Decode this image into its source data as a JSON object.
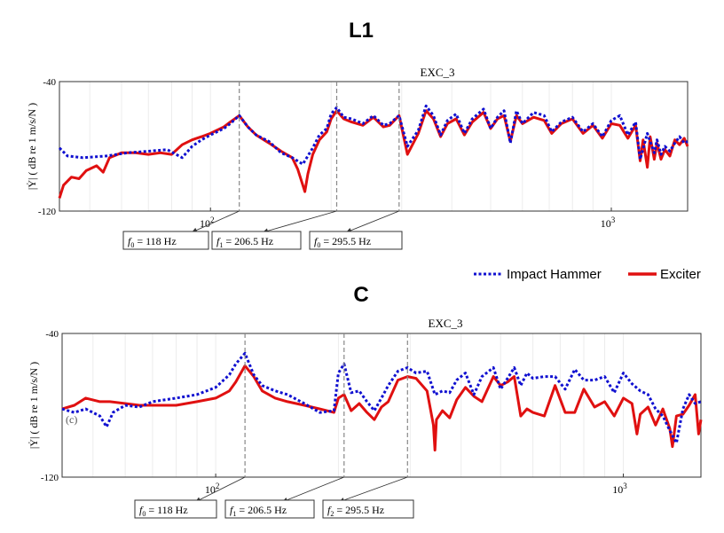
{
  "legend": {
    "placement": "middle-right",
    "entries": [
      {
        "name": "Impact Hammer",
        "color": "#1010d0",
        "style": "dotted"
      },
      {
        "name": "Exciter",
        "color": "#e01010",
        "style": "solid"
      }
    ]
  },
  "chart_data": [
    {
      "type": "line",
      "label": "L1",
      "title": "EXC_3",
      "ylabel": "|Ẏ| ( dB re 1 m/s/N )",
      "xscale": "log",
      "xlim": [
        42,
        1550
      ],
      "ylim": [
        -120,
        -40
      ],
      "ytick_labels": [
        "-40",
        "-120"
      ],
      "xticks": [
        {
          "value": 100,
          "base": "10",
          "exp": "2"
        },
        {
          "value": 1000,
          "base": "10",
          "exp": "3"
        }
      ],
      "grid": "vertical-light",
      "series": [
        {
          "name": "Impact Hammer",
          "color": "#1010d0",
          "style": "dotted",
          "x": [
            42,
            44,
            48,
            55,
            62,
            70,
            78,
            85,
            90,
            95,
            100,
            108,
            112,
            118,
            124,
            130,
            140,
            150,
            160,
            170,
            180,
            187,
            195,
            200,
            206.5,
            215,
            225,
            240,
            255,
            270,
            280,
            295.5,
            310,
            330,
            345,
            360,
            375,
            390,
            410,
            430,
            450,
            480,
            500,
            520,
            540,
            560,
            580,
            600,
            640,
            680,
            710,
            750,
            800,
            850,
            900,
            950,
            1000,
            1050,
            1100,
            1150,
            1180,
            1230,
            1280,
            1300,
            1330,
            1360,
            1400,
            1440,
            1480,
            1520,
            1550
          ],
          "values": [
            -81,
            -86,
            -87,
            -86,
            -84,
            -83,
            -82,
            -87,
            -80,
            -76,
            -73,
            -69,
            -66,
            -61,
            -68,
            -73,
            -77,
            -84,
            -87,
            -91,
            -81,
            -73,
            -69,
            -60,
            -56,
            -62,
            -63,
            -66,
            -61,
            -67,
            -66,
            -61,
            -80,
            -70,
            -55,
            -61,
            -73,
            -64,
            -60,
            -72,
            -63,
            -57,
            -69,
            -62,
            -58,
            -78,
            -58,
            -66,
            -59,
            -61,
            -71,
            -65,
            -62,
            -71,
            -66,
            -74,
            -64,
            -61,
            -73,
            -65,
            -88,
            -72,
            -84,
            -76,
            -85,
            -80,
            -83,
            -78,
            -74,
            -78,
            -77
          ]
        },
        {
          "name": "Exciter",
          "color": "#e01010",
          "style": "solid",
          "x": [
            42,
            43,
            45,
            47,
            49,
            52,
            54,
            56,
            60,
            65,
            70,
            75,
            80,
            85,
            90,
            95,
            100,
            108,
            112,
            118,
            124,
            130,
            140,
            150,
            160,
            165,
            170,
            172,
            175,
            180,
            187,
            195,
            200,
            206.5,
            215,
            225,
            240,
            255,
            270,
            280,
            295.5,
            310,
            330,
            345,
            360,
            375,
            390,
            410,
            430,
            450,
            480,
            500,
            520,
            540,
            560,
            580,
            600,
            640,
            680,
            710,
            750,
            800,
            850,
            900,
            950,
            1000,
            1050,
            1100,
            1150,
            1180,
            1200,
            1230,
            1250,
            1280,
            1300,
            1330,
            1360,
            1400,
            1440,
            1480,
            1520,
            1550
          ],
          "values": [
            -112,
            -104,
            -99,
            -100,
            -95,
            -92,
            -96,
            -87,
            -84,
            -84,
            -85,
            -84,
            -85,
            -79,
            -76,
            -74,
            -72,
            -68,
            -65,
            -61,
            -68,
            -73,
            -78,
            -83,
            -87,
            -94,
            -104,
            -108,
            -97,
            -85,
            -76,
            -71,
            -63,
            -58,
            -63,
            -65,
            -67,
            -62,
            -68,
            -67,
            -61,
            -85,
            -72,
            -58,
            -63,
            -74,
            -66,
            -63,
            -73,
            -65,
            -59,
            -69,
            -63,
            -61,
            -77,
            -61,
            -66,
            -62,
            -64,
            -72,
            -66,
            -63,
            -72,
            -67,
            -75,
            -66,
            -67,
            -75,
            -67,
            -89,
            -76,
            -93,
            -74,
            -88,
            -78,
            -88,
            -82,
            -86,
            -76,
            -79,
            -75,
            -80
          ]
        }
      ],
      "annotations": [
        {
          "freq": 118,
          "var": "f",
          "sub": "0",
          "text": "= 118 Hz"
        },
        {
          "freq": 206.5,
          "var": "f",
          "sub": "1",
          "text": "= 206.5 Hz"
        },
        {
          "freq": 295.5,
          "var": "f",
          "sub": "0",
          "text": "= 295.5 Hz"
        }
      ]
    },
    {
      "type": "line",
      "label": "C",
      "title": "EXC_3",
      "ylabel": "|Ẏ| ( dB re 1 m/s/N )",
      "xscale": "log",
      "xlim": [
        42,
        1550
      ],
      "ylim": [
        -120,
        -40
      ],
      "ytick_labels": [
        "-40",
        "-120"
      ],
      "xticks": [
        {
          "value": 100,
          "base": "10",
          "exp": "2"
        },
        {
          "value": 1000,
          "base": "10",
          "exp": "3"
        }
      ],
      "grid": "vertical-light",
      "inset_text": "(c)",
      "series": [
        {
          "name": "Impact Hammer",
          "color": "#1010d0",
          "style": "dotted",
          "x": [
            42,
            45,
            48,
            52,
            54,
            56,
            60,
            65,
            70,
            80,
            90,
            100,
            108,
            112,
            118,
            124,
            130,
            140,
            150,
            165,
            180,
            195,
            200,
            206.5,
            215,
            225,
            235,
            245,
            255,
            265,
            280,
            295.5,
            310,
            330,
            345,
            360,
            375,
            390,
            410,
            430,
            450,
            480,
            500,
            520,
            540,
            560,
            580,
            600,
            640,
            680,
            720,
            760,
            800,
            850,
            900,
            950,
            1000,
            1050,
            1100,
            1150,
            1200,
            1250,
            1300,
            1350,
            1400,
            1450,
            1500,
            1550
          ],
          "values": [
            -82,
            -84,
            -82,
            -86,
            -92,
            -84,
            -80,
            -81,
            -78,
            -76,
            -74,
            -70,
            -63,
            -57,
            -51,
            -63,
            -69,
            -72,
            -74,
            -79,
            -84,
            -83,
            -62,
            -57,
            -73,
            -72,
            -78,
            -83,
            -76,
            -69,
            -61,
            -59,
            -62,
            -61,
            -74,
            -72,
            -73,
            -66,
            -62,
            -74,
            -64,
            -59,
            -71,
            -65,
            -59,
            -69,
            -62,
            -65,
            -64,
            -64,
            -71,
            -60,
            -66,
            -66,
            -64,
            -73,
            -62,
            -68,
            -72,
            -74,
            -82,
            -86,
            -94,
            -101,
            -82,
            -74,
            -79,
            -78
          ]
        },
        {
          "name": "Exciter",
          "color": "#e01010",
          "style": "solid",
          "x": [
            42,
            45,
            48,
            52,
            55,
            60,
            65,
            70,
            80,
            90,
            100,
            108,
            112,
            118,
            124,
            130,
            140,
            150,
            165,
            180,
            195,
            200,
            206.5,
            215,
            225,
            235,
            245,
            255,
            265,
            280,
            295.5,
            310,
            330,
            342,
            345,
            348,
            360,
            375,
            390,
            410,
            430,
            450,
            480,
            500,
            520,
            540,
            560,
            580,
            600,
            640,
            680,
            720,
            760,
            800,
            850,
            900,
            950,
            1000,
            1050,
            1080,
            1100,
            1150,
            1200,
            1250,
            1300,
            1320,
            1350,
            1400,
            1450,
            1500,
            1530,
            1550
          ],
          "values": [
            -82,
            -80,
            -76,
            -78,
            -78,
            -79,
            -80,
            -80,
            -80,
            -78,
            -76,
            -72,
            -67,
            -58,
            -64,
            -72,
            -76,
            -78,
            -80,
            -82,
            -84,
            -76,
            -74,
            -83,
            -79,
            -84,
            -88,
            -81,
            -78,
            -66,
            -64,
            -65,
            -72,
            -91,
            -105,
            -88,
            -83,
            -87,
            -77,
            -70,
            -75,
            -78,
            -64,
            -69,
            -67,
            -64,
            -86,
            -82,
            -84,
            -86,
            -69,
            -84,
            -84,
            -71,
            -81,
            -78,
            -86,
            -76,
            -79,
            -96,
            -85,
            -81,
            -91,
            -82,
            -93,
            -103,
            -86,
            -85,
            -80,
            -74,
            -96,
            -88
          ]
        }
      ],
      "annotations": [
        {
          "freq": 118,
          "var": "f",
          "sub": "0",
          "text": "= 118 Hz"
        },
        {
          "freq": 206.5,
          "var": "f",
          "sub": "1",
          "text": "= 206.5 Hz"
        },
        {
          "freq": 295.5,
          "var": "f",
          "sub": "2",
          "text": "= 295.5 Hz"
        }
      ]
    }
  ]
}
